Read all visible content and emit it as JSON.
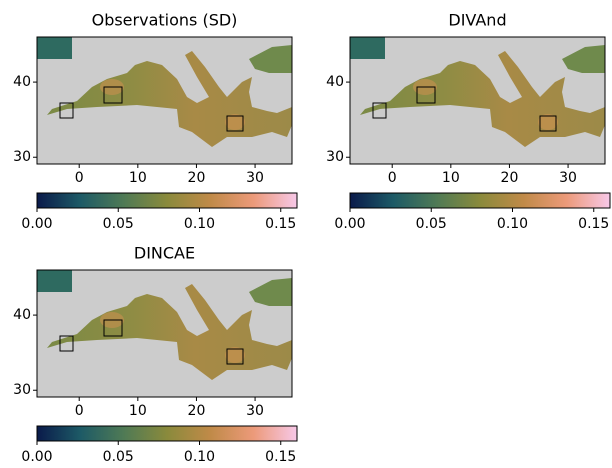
{
  "chart_data": [
    {
      "type": "heatmap",
      "title": "Observations (SD)",
      "xlim": [
        -7.2,
        36.3
      ],
      "ylim": [
        29.1,
        46
      ],
      "xticks": [
        0,
        10,
        20,
        30
      ],
      "yticks": [
        30,
        40
      ],
      "colorbar": {
        "clim": [
          0,
          0.16
        ],
        "colormap": [
          "#0a1a4a",
          "#1d5a66",
          "#4f7a55",
          "#8a8a3c",
          "#c08a48",
          "#ec9a7a",
          "#f7c8e8"
        ],
        "ticks": [
          {
            "value": 0,
            "label": "0.00"
          },
          {
            "value": 0.05,
            "label": "0.05"
          },
          {
            "value": 0.1,
            "label": "0.10"
          },
          {
            "value": 0.15,
            "label": "0.15"
          }
        ]
      }
    },
    {
      "type": "heatmap",
      "title": "DIVAnd",
      "xlim": [
        -7.2,
        36.3
      ],
      "ylim": [
        29.1,
        46
      ],
      "xticks": [
        0,
        10,
        20,
        30
      ],
      "yticks": [
        30,
        40
      ],
      "colorbar": {
        "clim": [
          0,
          0.16
        ],
        "colormap": [
          "#0a1a4a",
          "#1d5a66",
          "#4f7a55",
          "#8a8a3c",
          "#c08a48",
          "#ec9a7a",
          "#f7c8e8"
        ],
        "ticks": [
          {
            "value": 0,
            "label": "0.00"
          },
          {
            "value": 0.05,
            "label": "0.05"
          },
          {
            "value": 0.1,
            "label": "0.10"
          },
          {
            "value": 0.15,
            "label": "0.15"
          }
        ]
      }
    },
    {
      "type": "heatmap",
      "title": "DINCAE",
      "xlim": [
        -7.2,
        36.3
      ],
      "ylim": [
        29.1,
        46
      ],
      "xticks": [
        0,
        10,
        20,
        30
      ],
      "yticks": [
        30,
        40
      ],
      "colorbar": {
        "clim": [
          0,
          0.16
        ],
        "colormap": [
          "#0a1a4a",
          "#1d5a66",
          "#4f7a55",
          "#8a8a3c",
          "#c08a48",
          "#ec9a7a",
          "#f7c8e8"
        ],
        "ticks": [
          {
            "value": 0,
            "label": "0.00"
          },
          {
            "value": 0.05,
            "label": "0.05"
          },
          {
            "value": 0.1,
            "label": "0.10"
          },
          {
            "value": 0.15,
            "label": "0.15"
          }
        ]
      }
    }
  ]
}
